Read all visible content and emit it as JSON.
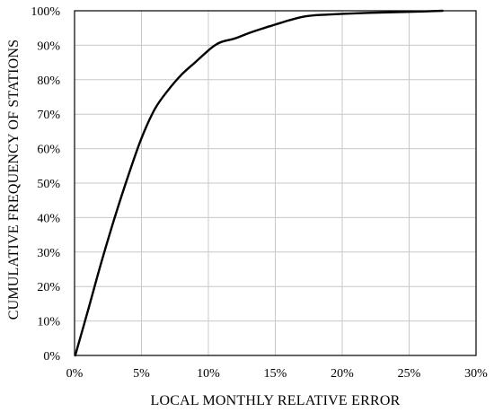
{
  "chart_data": {
    "type": "line",
    "title": "",
    "xlabel": "LOCAL MONTHLY RELATIVE ERROR",
    "ylabel": "CUMULATIVE FREQUENCY OF STATIONS",
    "xlim": [
      0,
      30
    ],
    "ylim": [
      0,
      100
    ],
    "x_unit": "%",
    "y_unit": "%",
    "x_ticks": [
      "0%",
      "5%",
      "10%",
      "15%",
      "20%",
      "25%",
      "30%"
    ],
    "y_ticks": [
      "0%",
      "10%",
      "20%",
      "30%",
      "40%",
      "50%",
      "60%",
      "70%",
      "80%",
      "90%",
      "100%"
    ],
    "x_tick_values": [
      0,
      5,
      10,
      15,
      20,
      25,
      30
    ],
    "y_tick_values": [
      0,
      10,
      20,
      30,
      40,
      50,
      60,
      70,
      80,
      90,
      100
    ],
    "grid": true,
    "legend": "none",
    "series": [
      {
        "color": "#000000",
        "x": [
          0.05,
          1,
          2,
          3,
          4,
          5,
          6,
          7,
          8,
          9,
          10,
          10.5,
          11,
          12,
          13,
          14,
          15,
          16,
          17,
          18,
          19,
          20,
          22,
          24,
          25,
          26,
          27.5
        ],
        "y": [
          0,
          13,
          27,
          40,
          52,
          63,
          71.5,
          77,
          81.5,
          85,
          88.5,
          90,
          91,
          92,
          93.5,
          94.8,
          96,
          97.2,
          98.2,
          98.7,
          98.9,
          99.1,
          99.4,
          99.6,
          99.7,
          99.8,
          100
        ]
      }
    ]
  }
}
